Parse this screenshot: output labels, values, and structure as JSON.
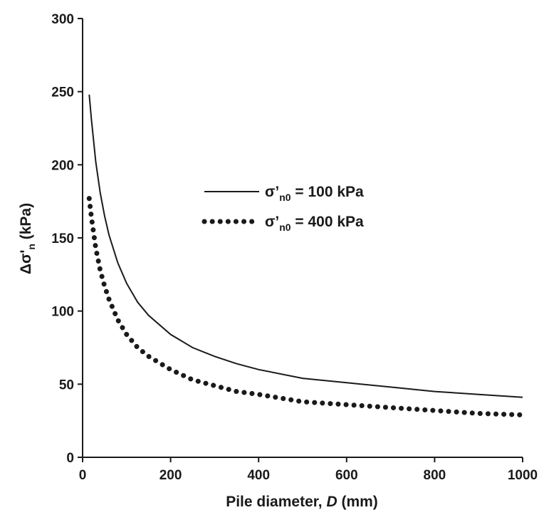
{
  "chart_data": {
    "type": "line",
    "xlabel": {
      "prefix": "Pile diameter, ",
      "var": "D",
      "suffix": " (mm)"
    },
    "ylabel": {
      "main": "Δσ'",
      "sub": "n",
      "unit": " (kPa)"
    },
    "xlim": [
      0,
      1000
    ],
    "ylim": [
      0,
      300
    ],
    "x_ticks": [
      0,
      200,
      400,
      600,
      800,
      1000
    ],
    "y_ticks": [
      0,
      50,
      100,
      150,
      200,
      250,
      300
    ],
    "grid": false,
    "legend_position": "center-right",
    "series": [
      {
        "name": "σ'n0 = 100 kPa",
        "legend": {
          "main": "σ’",
          "sub": "n0",
          "rest": " = 100 kPa"
        },
        "style": "solid",
        "color": "#1a1a1a",
        "x": [
          15,
          20,
          30,
          40,
          50,
          60,
          80,
          100,
          125,
          150,
          200,
          250,
          300,
          350,
          400,
          500,
          600,
          700,
          800,
          900,
          1000
        ],
        "y": [
          248,
          231,
          202,
          181,
          165,
          152,
          133,
          119,
          106,
          97,
          84,
          75,
          69,
          64,
          60,
          54,
          51,
          48,
          45,
          43,
          41
        ]
      },
      {
        "name": "σ'n0 = 400 kPa",
        "legend": {
          "main": "σ’",
          "sub": "n0",
          "rest": " = 400 kPa"
        },
        "style": "dotted",
        "color": "#1a1a1a",
        "x": [
          15,
          20,
          30,
          40,
          50,
          60,
          80,
          100,
          125,
          150,
          200,
          250,
          300,
          350,
          400,
          500,
          600,
          700,
          800,
          900,
          1000
        ],
        "y": [
          177,
          164,
          143,
          128,
          117,
          108,
          94,
          84,
          75,
          69,
          60,
          53,
          49,
          45,
          43,
          38,
          36,
          34,
          32,
          30,
          29
        ]
      }
    ]
  }
}
